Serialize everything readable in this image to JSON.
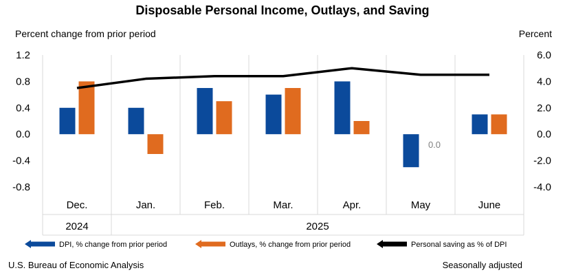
{
  "chart_data": {
    "type": "bar",
    "title": "Disposable Personal Income, Outlays, and Saving",
    "ylabel_left": "Percent change from prior period",
    "ylabel_right": "Percent",
    "categories": [
      "Dec.",
      "Jan.",
      "Feb.",
      "Mar.",
      "Apr.",
      "May",
      "June"
    ],
    "year_groups": [
      {
        "label": "2024",
        "span": 1
      },
      {
        "label": "2025",
        "span": 6
      }
    ],
    "left_ticks": [
      "1.2",
      "0.8",
      "0.4",
      "0.0",
      "-0.4",
      "-0.8"
    ],
    "right_ticks": [
      "6.0",
      "4.0",
      "2.0",
      "0.0",
      "-2.0",
      "-4.0"
    ],
    "ylim_left": [
      -0.8,
      1.2
    ],
    "ylim_right": [
      -4.0,
      6.0
    ],
    "series": [
      {
        "name": "DPI, % change from prior period",
        "type": "bar",
        "axis": "left",
        "color": "#0b4a9b",
        "values": [
          0.4,
          0.4,
          0.7,
          0.6,
          0.8,
          -0.5,
          0.3
        ]
      },
      {
        "name": "Outlays, % change from prior period",
        "type": "bar",
        "axis": "left",
        "color": "#e06b1f",
        "values": [
          0.8,
          -0.3,
          0.5,
          0.7,
          0.2,
          0.0,
          0.3
        ]
      },
      {
        "name": "Personal saving as % of DPI",
        "type": "line",
        "axis": "right",
        "color": "#000000",
        "values": [
          3.5,
          4.2,
          4.4,
          4.4,
          5.0,
          4.5,
          4.5
        ]
      }
    ],
    "data_labels": [
      {
        "series": 1,
        "index": 5,
        "text": "0.0"
      }
    ],
    "grid": "vertical",
    "legend": "bottom"
  },
  "footer": {
    "source": "U.S. Bureau of Economic Analysis",
    "note": "Seasonally adjusted"
  }
}
